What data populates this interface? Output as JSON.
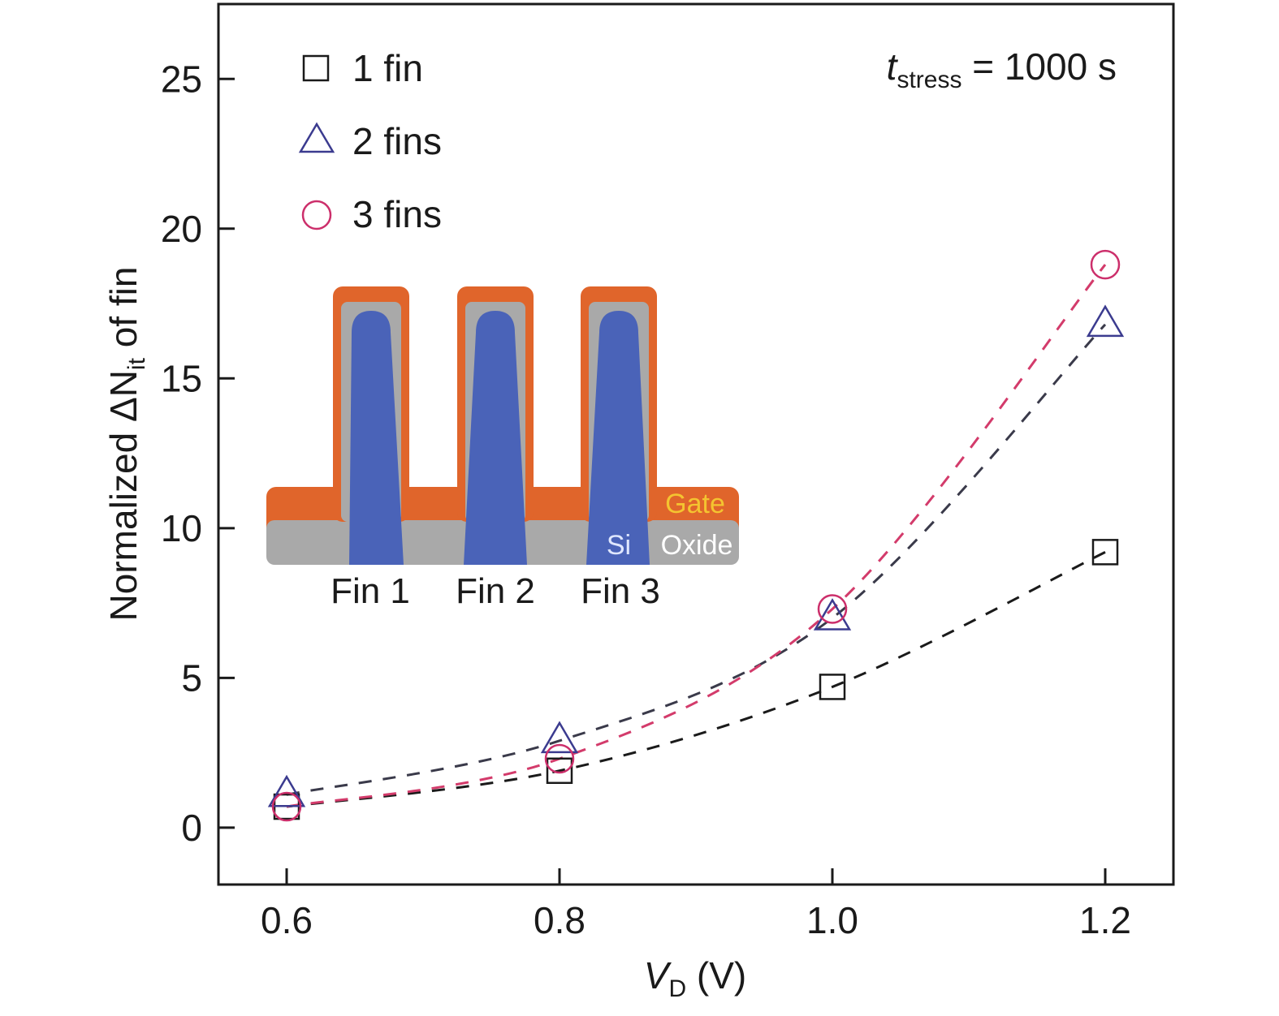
{
  "chart_data": {
    "type": "scatter",
    "xlabel": {
      "main": "V",
      "sub": "D",
      "unit": " (V)"
    },
    "ylabel": {
      "pre": "Normalized ΔN",
      "sub": "it",
      "post": " of fin"
    },
    "xlim": [
      0.55,
      1.25
    ],
    "ylim": [
      -1.9,
      27.5
    ],
    "xticks": [
      "0.6",
      "0.8",
      "1.0",
      "1.2"
    ],
    "yticks": [
      "0",
      "5",
      "10",
      "15",
      "20",
      "25"
    ],
    "x": [
      0.6,
      0.8,
      1.0,
      1.2
    ],
    "series": [
      {
        "name": "1 fin",
        "marker": "square",
        "color": "#1a1a1a",
        "fit_color": "#1a1a1a",
        "values": [
          0.7,
          1.9,
          4.7,
          9.2
        ]
      },
      {
        "name": "2 fins",
        "marker": "triangle",
        "color": "#3b3b8f",
        "fit_color": "#3a3a4a",
        "values": [
          1.1,
          2.9,
          7.0,
          16.8
        ]
      },
      {
        "name": "3 fins",
        "marker": "circle",
        "color": "#cc2f6b",
        "fit_color": "#d33b6b",
        "values": [
          0.7,
          2.3,
          7.3,
          18.8
        ]
      }
    ],
    "annotation": {
      "t": "t",
      "sub": "stress",
      "rest": " = 1000 s"
    },
    "legend_position": "top-left",
    "grid": false
  },
  "inset": {
    "fin_labels": [
      "Fin 1",
      "Fin 2",
      "Fin 3"
    ],
    "gate_label": "Gate",
    "si_label": "Si",
    "oxide_label": "Oxide",
    "colors": {
      "gate": "#e0652b",
      "oxide": "#a9a9a9",
      "si": "#4a63b8",
      "gate_text": "#f4c430",
      "si_text": "#dfe7ff",
      "oxide_text": "#ffffff"
    }
  }
}
